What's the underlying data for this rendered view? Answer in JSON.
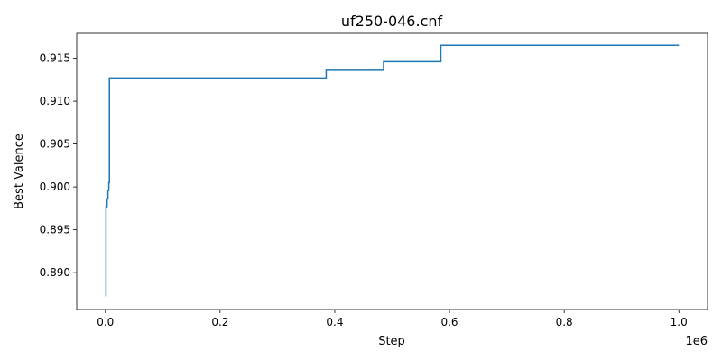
{
  "chart_data": {
    "type": "line",
    "title": "uf250-046.cnf",
    "xlabel": "Step",
    "ylabel": "Best Valence",
    "x_offset_text": "1e6",
    "xlim": [
      -50000,
      1050000
    ],
    "ylim": [
      0.8857,
      0.9179
    ],
    "x_ticks": [
      0.0,
      200000,
      400000,
      600000,
      800000,
      1000000
    ],
    "x_tick_labels": [
      "0.0",
      "0.2",
      "0.4",
      "0.6",
      "0.8",
      "1.0"
    ],
    "y_ticks": [
      0.89,
      0.895,
      0.9,
      0.905,
      0.91,
      0.915
    ],
    "y_tick_labels": [
      "0.890",
      "0.895",
      "0.900",
      "0.905",
      "0.910",
      "0.915"
    ],
    "grid": false,
    "colors": {
      "series": "#1f77b4"
    },
    "series": [
      {
        "drawstyle": "steps-post",
        "x": [
          0,
          1000,
          3000,
          4500,
          6000,
          7000,
          385000,
          485000,
          585000,
          1000000
        ],
        "y": [
          0.8873,
          0.8977,
          0.8986,
          0.8996,
          0.9005,
          0.9127,
          0.9136,
          0.9146,
          0.9165,
          0.9165
        ]
      }
    ]
  }
}
